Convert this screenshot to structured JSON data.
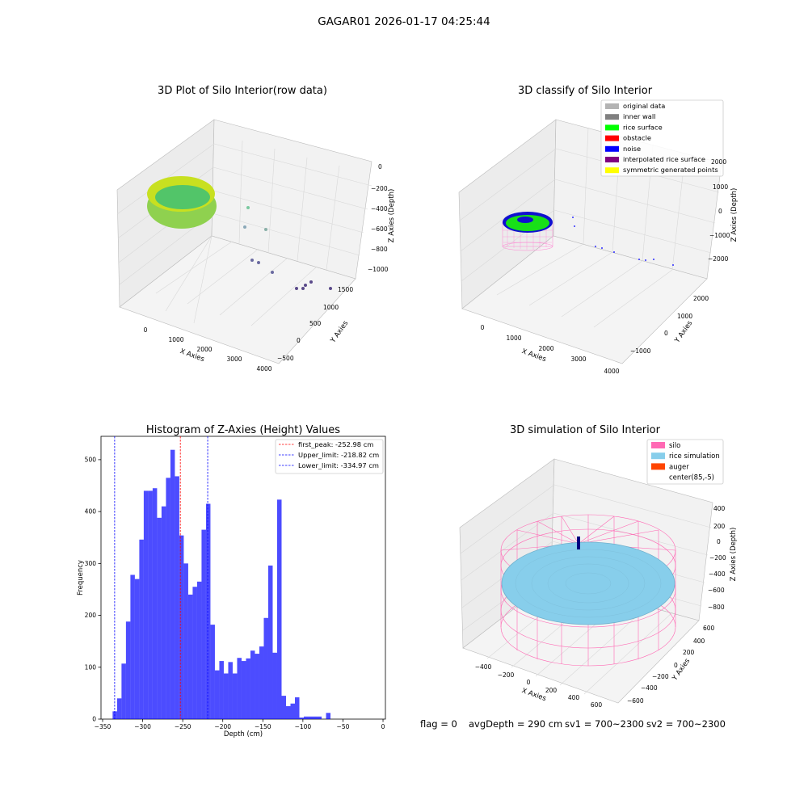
{
  "figure": {
    "suptitle": "GAGAR01 2026-01-17 04:25:44",
    "footer": {
      "flag": "flag = 0",
      "avg_depth": "avgDepth = 290 cm",
      "sv1": "sv1 = 700~2300",
      "sv2": "sv2 = 700~2300"
    }
  },
  "panels": {
    "raw": {
      "title": "3D Plot of Silo Interior(row data)",
      "xlabel": "X Axies",
      "ylabel": "Y Axies",
      "zlabel": "Z Axies (Depth)",
      "xticks": [
        "0",
        "1000",
        "2000",
        "3000",
        "4000"
      ],
      "yticks": [
        "1500",
        "1000",
        "500",
        "0",
        "−500"
      ],
      "zticks": [
        "0",
        "−200",
        "−400",
        "−600",
        "−800",
        "−1000"
      ]
    },
    "classify": {
      "title": "3D classify of Silo Interior",
      "xlabel": "X Axies",
      "ylabel": "Y Axies",
      "zlabel": "Z Axies (Depth)",
      "xticks": [
        "0",
        "1000",
        "2000",
        "3000",
        "4000"
      ],
      "yticks": [
        "2000",
        "1000",
        "0",
        "−1000"
      ],
      "zticks": [
        "2000",
        "1000",
        "0",
        "−1000",
        "−2000"
      ],
      "legend": [
        {
          "label": "original data",
          "color": "#b3b3b3"
        },
        {
          "label": "inner wall",
          "color": "#808080"
        },
        {
          "label": "rice surface",
          "color": "#00ff00"
        },
        {
          "label": "obstacle",
          "color": "#ff0000"
        },
        {
          "label": "noise",
          "color": "#0000ff"
        },
        {
          "label": "interpolated rice surface",
          "color": "#800080"
        },
        {
          "label": "symmetric generated points",
          "color": "#ffff00"
        }
      ]
    },
    "simulation": {
      "title": "3D simulation of Silo Interior",
      "xlabel": "X Axies",
      "ylabel": "Y Axies",
      "zlabel": "Z Axies (Depth)",
      "xticks": [
        "−400",
        "−200",
        "0",
        "200",
        "400",
        "600"
      ],
      "yticks": [
        "600",
        "400",
        "200",
        "0",
        "−200",
        "−400",
        "−600"
      ],
      "zticks": [
        "400",
        "200",
        "0",
        "−200",
        "−400",
        "−600",
        "−800"
      ],
      "legend": [
        {
          "label": "silo",
          "color": "#ff69b4"
        },
        {
          "label": "rice simulation",
          "color": "#87ceeb"
        },
        {
          "label": "auger",
          "color": "#ff4500"
        },
        {
          "label": "center(85,-5)",
          "color": "#ffffff"
        }
      ]
    }
  },
  "chart_data": {
    "type": "bar",
    "title": "Histogram of Z-Axies (Height) Values",
    "xlabel": "Depth (cm)",
    "ylabel": "Frequency",
    "xlim": [
      -352,
      3
    ],
    "ylim": [
      0,
      545
    ],
    "bar_color": "#0000ff",
    "bin_start": -337.5,
    "bin_width": 5.55,
    "values": [
      15,
      40,
      107,
      188,
      278,
      270,
      346,
      440,
      440,
      445,
      388,
      410,
      465,
      519,
      468,
      354,
      300,
      240,
      255,
      265,
      365,
      415,
      182,
      94,
      112,
      88,
      110,
      88,
      118,
      112,
      117,
      132,
      126,
      140,
      195,
      296,
      128,
      423,
      45,
      25,
      30,
      42,
      3,
      5,
      5,
      5,
      5,
      0,
      12
    ],
    "x_ticks": [
      -350,
      -300,
      -250,
      -200,
      -150,
      -100,
      -50,
      0
    ],
    "y_ticks": [
      0,
      100,
      200,
      300,
      400,
      500
    ],
    "vlines": [
      {
        "label": "first_peak: -252.98 cm",
        "x": -252.98,
        "color": "#ff0000"
      },
      {
        "label": "Upper_limit: -218.82 cm",
        "x": -218.82,
        "color": "#0000ff"
      },
      {
        "label": "Lower_limit: -334.97 cm",
        "x": -334.97,
        "color": "#0000ff"
      }
    ],
    "legend_position": "upper-right",
    "grid": false
  }
}
